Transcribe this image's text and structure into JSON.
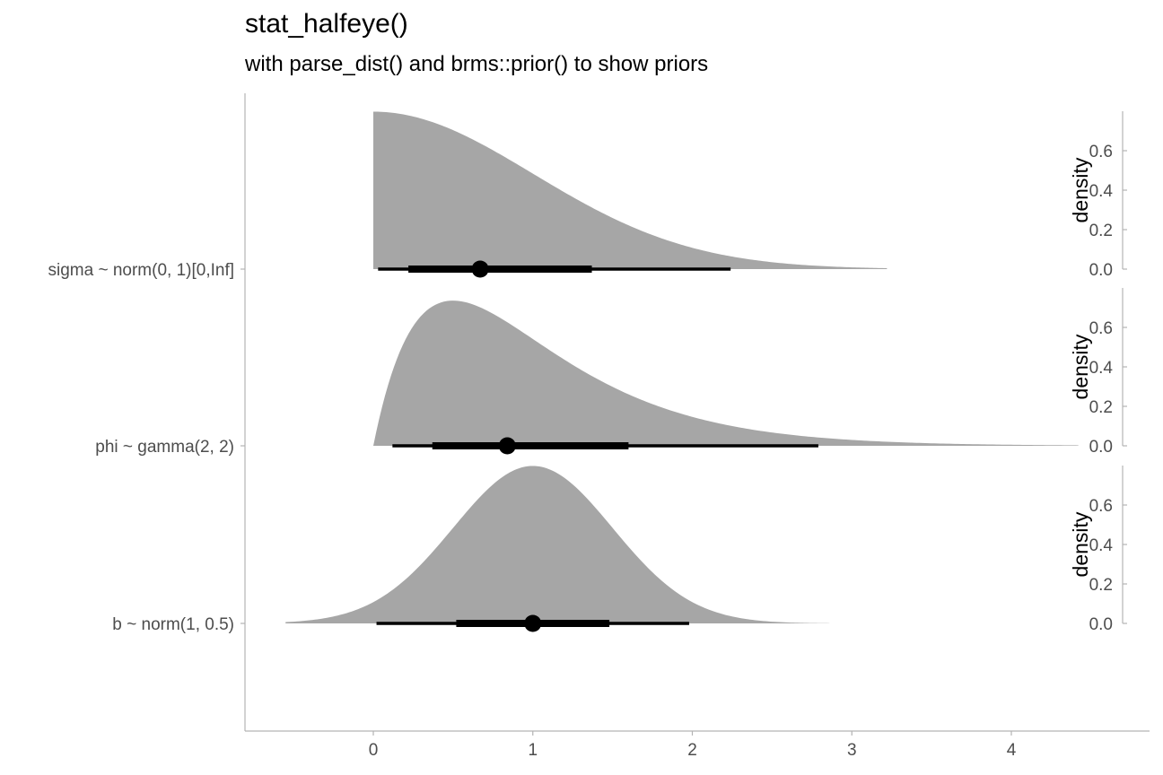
{
  "chart_data": {
    "type": "area",
    "title": "stat_halfeye()",
    "subtitle": "with parse_dist() and brms::prior() to show priors",
    "xlabel": "",
    "ylabel": "",
    "xlim": [
      -0.8,
      4.85
    ],
    "x_ticks": [
      0,
      1,
      2,
      3,
      4
    ],
    "grid": false,
    "categories": [
      "sigma ~ norm(0, 1)[0,Inf]",
      "phi ~ gamma(2, 2)",
      "b ~ norm(1, 0.5)"
    ],
    "colors": {
      "slab": "#a6a6a6",
      "interval": "#000000",
      "point": "#000000",
      "axis": "#b3b3b3",
      "tick_text": "#4d4d4d"
    },
    "side_axis": {
      "title": "density",
      "ticks": [
        0.0,
        0.2,
        0.4,
        0.6
      ],
      "tick_labels": [
        "0.0",
        "0.2",
        "0.4",
        "0.6"
      ],
      "ylim": [
        0,
        0.8
      ]
    },
    "series": [
      {
        "name": "sigma ~ norm(0, 1)[0,Inf]",
        "dist": "halfnorm",
        "mean": 0,
        "sd": 1,
        "range": [
          0,
          3.22
        ],
        "point": 0.67,
        "interval_66": [
          0.22,
          1.37
        ],
        "interval_95": [
          0.03,
          2.24
        ]
      },
      {
        "name": "phi ~ gamma(2, 2)",
        "dist": "gamma",
        "shape": 2,
        "rate": 2,
        "range": [
          0,
          4.42
        ],
        "point": 0.84,
        "interval_66": [
          0.37,
          1.6
        ],
        "interval_95": [
          0.12,
          2.79
        ]
      },
      {
        "name": "b ~ norm(1, 0.5)",
        "dist": "norm",
        "mean": 1,
        "sd": 0.5,
        "range": [
          -0.55,
          2.86
        ],
        "point": 1.0,
        "interval_66": [
          0.52,
          1.48
        ],
        "interval_95": [
          0.02,
          1.98
        ]
      }
    ]
  }
}
